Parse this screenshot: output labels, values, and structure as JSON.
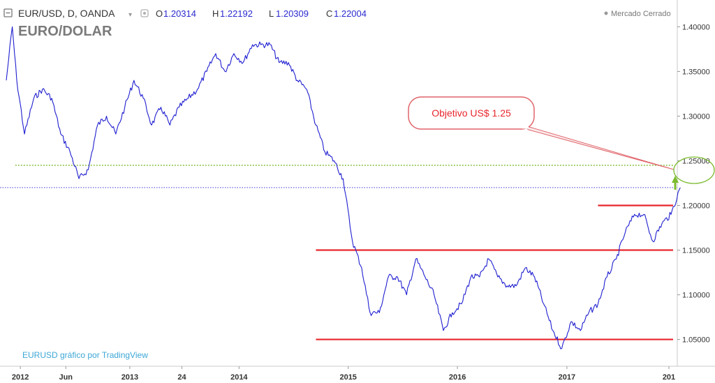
{
  "header": {
    "symbol_label": "EUR/USD, D, OANDA",
    "o_label": "O",
    "o_value": "1.20314",
    "h_label": "H",
    "h_value": "1.22192",
    "l_label": "L",
    "l_value": "1.20309",
    "c_label": "C",
    "c_value": "1.22004",
    "market_status": "Mercado Cerrado",
    "title": "EURO/DOLAR"
  },
  "watermark": "EURUSD gráfico por TradingView",
  "annotation": {
    "text": "Objetivo US$ 1.25"
  },
  "colors": {
    "series": "#1f1fd1",
    "resistance": "#e8262b",
    "target_line": "#7cbb2f",
    "current_line": "#3b3bd6",
    "callout_border": "#e0646a",
    "watermark": "#3ca7d6",
    "axis_text": "#333333",
    "title": "#7a7a7a"
  },
  "chart_data": {
    "type": "line",
    "title": "EURO/DOLAR",
    "series": [
      {
        "values_x": [
          "2011-11",
          "2011-12-05",
          "2011-12-20",
          "2012-01",
          "2012-02",
          "2012-03",
          "2012-04",
          "2012-05",
          "2012-06",
          "2012-07",
          "2012-08",
          "2012-09",
          "2012-10",
          "2012-11",
          "2012-12",
          "2013-01",
          "2013-02",
          "2013-03",
          "2013-04",
          "2013-05",
          "2013-06",
          "2013-07",
          "2013-08",
          "2013-09",
          "2013-10",
          "2013-11",
          "2013-12",
          "2014-01",
          "2014-02",
          "2014-03",
          "2014-04",
          "2014-05",
          "2014-06",
          "2014-07",
          "2014-08",
          "2014-09",
          "2014-10",
          "2014-11",
          "2014-12",
          "2015-01",
          "2015-02",
          "2015-03",
          "2015-04",
          "2015-05",
          "2015-06",
          "2015-07",
          "2015-08",
          "2015-09",
          "2015-10",
          "2015-11",
          "2015-12",
          "2016-01",
          "2016-02",
          "2016-03",
          "2016-04",
          "2016-05",
          "2016-06",
          "2016-07",
          "2016-08",
          "2016-09",
          "2016-10",
          "2016-11",
          "2016-12",
          "2017-01",
          "2017-02",
          "2017-03",
          "2017-04",
          "2017-05",
          "2017-06",
          "2017-07",
          "2017-08",
          "2017-09",
          "2017-10",
          "2017-11",
          "2017-12",
          "2018-01"
        ],
        "values": [
          1.34,
          1.4,
          1.34,
          1.28,
          1.32,
          1.33,
          1.32,
          1.28,
          1.26,
          1.23,
          1.24,
          1.29,
          1.3,
          1.28,
          1.31,
          1.34,
          1.32,
          1.29,
          1.31,
          1.29,
          1.31,
          1.32,
          1.33,
          1.35,
          1.37,
          1.35,
          1.37,
          1.36,
          1.38,
          1.38,
          1.38,
          1.36,
          1.36,
          1.34,
          1.33,
          1.29,
          1.26,
          1.25,
          1.23,
          1.16,
          1.13,
          1.08,
          1.08,
          1.12,
          1.12,
          1.1,
          1.14,
          1.12,
          1.1,
          1.06,
          1.08,
          1.09,
          1.12,
          1.12,
          1.14,
          1.12,
          1.11,
          1.11,
          1.13,
          1.12,
          1.09,
          1.06,
          1.04,
          1.07,
          1.06,
          1.08,
          1.09,
          1.12,
          1.14,
          1.17,
          1.19,
          1.19,
          1.16,
          1.18,
          1.19,
          1.22
        ]
      }
    ],
    "x_tick_labels": [
      "2012",
      "Jun",
      "2013",
      "24",
      "2014",
      "2015",
      "2016",
      "2017",
      "201"
    ],
    "y_tick_labels": [
      "1.40000",
      "1.35000",
      "1.30000",
      "1.25000",
      "1.20000",
      "1.15000",
      "1.10000",
      "1.05000"
    ],
    "y_ticks": [
      1.4,
      1.35,
      1.3,
      1.25,
      1.2,
      1.15,
      1.1,
      1.05
    ],
    "ylim": [
      1.02,
      1.43
    ],
    "horizontal_lines": [
      {
        "kind": "resistance",
        "value": 1.2,
        "from": "2017-04",
        "to": "2018-01"
      },
      {
        "kind": "support-top",
        "value": 1.15,
        "from": "2014-09",
        "to": "2018-01"
      },
      {
        "kind": "support-bottom",
        "value": 1.05,
        "from": "2014-09",
        "to": "2018-01"
      },
      {
        "kind": "target-dotted",
        "value": 1.245,
        "from": "2011-12",
        "to": "2018-01"
      },
      {
        "kind": "last-price-dotted",
        "value": 1.22,
        "from": "2011-10",
        "to": "2018-01"
      }
    ],
    "grid": false,
    "legend": "none"
  }
}
